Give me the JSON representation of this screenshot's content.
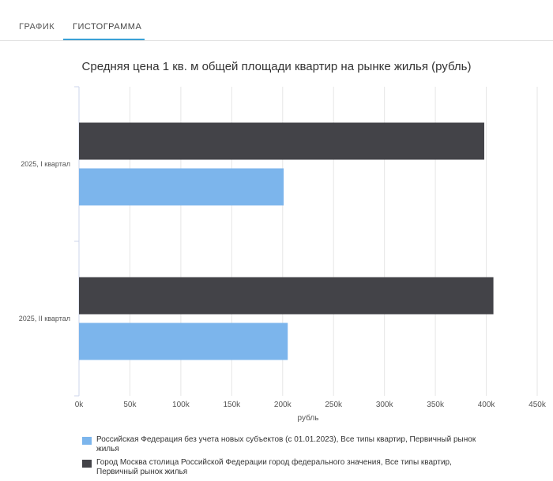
{
  "tabs": [
    {
      "label": "ГРАФИК",
      "active": false
    },
    {
      "label": "ГИСТОГРАММА",
      "active": true
    }
  ],
  "chart_data": {
    "type": "bar",
    "orientation": "horizontal",
    "title": "Средняя цена 1 кв. м общей площади квартир на рынке жилья (рубль)",
    "xlabel": "рубль",
    "ylabel": "",
    "xlim": [
      0,
      450000
    ],
    "ticks": [
      0,
      50000,
      100000,
      150000,
      200000,
      250000,
      300000,
      350000,
      400000,
      450000
    ],
    "tick_labels": [
      "0k",
      "50k",
      "100k",
      "150k",
      "200k",
      "250k",
      "300k",
      "350k",
      "400k",
      "450k"
    ],
    "categories": [
      "2025, I квартал",
      "2025, II квартал"
    ],
    "grid": true,
    "series": [
      {
        "name": "Город Москва столица Российской Федерации город федерального значения, Все типы квартир, Первичный рынок жилья",
        "color": "#434348",
        "values": [
          398000,
          407000
        ]
      },
      {
        "name": "Российская Федерация без учета новых субъектов (с 01.01.2023), Все типы квартир, Первичный рынок жилья",
        "color": "#7cb5ec",
        "values": [
          201000,
          205000
        ]
      }
    ],
    "legend_order": [
      1,
      0
    ]
  }
}
